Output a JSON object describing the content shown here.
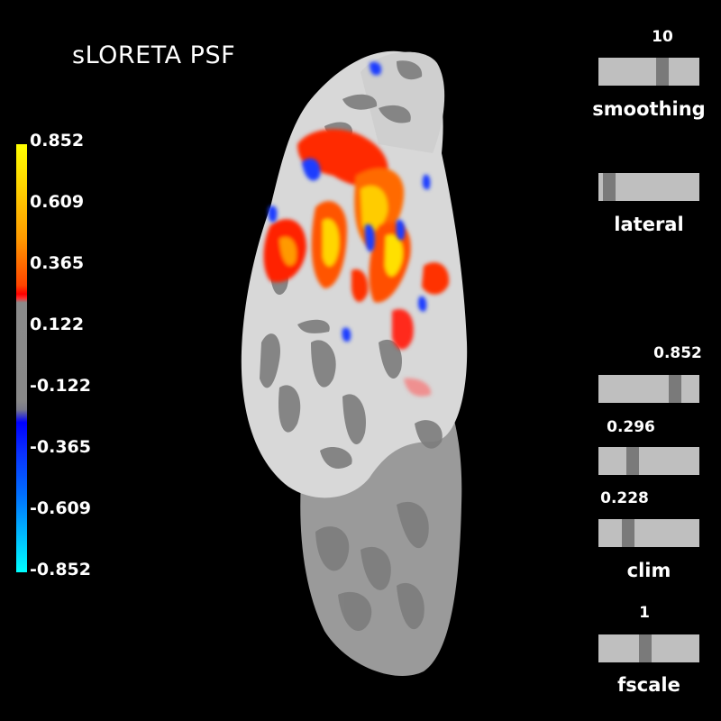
{
  "title": "sLORETA PSF",
  "colorbar": {
    "ticks": [
      "0.852",
      "0.609",
      "0.365",
      "0.122",
      "-0.122",
      "-0.365",
      "-0.609",
      "-0.852"
    ]
  },
  "sliders": {
    "smoothing": {
      "label": "smoothing",
      "value": "10",
      "position": 0.65
    },
    "lateral": {
      "label": "lateral",
      "value": "",
      "position": 0.05
    },
    "clim_max": {
      "value": "0.852",
      "position": 0.8
    },
    "clim_mid": {
      "value": "0.296",
      "position": 0.32
    },
    "clim_min": {
      "value": "0.228",
      "position": 0.27
    },
    "clim": {
      "label": "clim"
    },
    "fscale": {
      "label": "fscale",
      "value": "1",
      "position": 0.46
    }
  }
}
